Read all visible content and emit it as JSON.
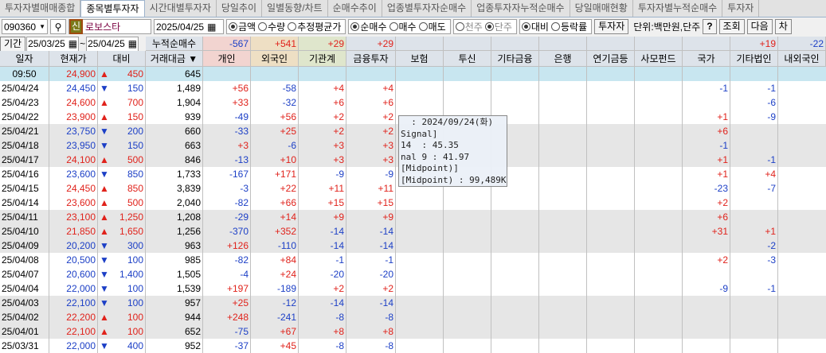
{
  "tabs": [
    "투자자별매매종합",
    "종목별투자자",
    "시간대별투자자",
    "당일추이",
    "일별동향/차트",
    "순매수추이",
    "업종별투자자순매수",
    "업종투자자누적순매수",
    "당일매매현황",
    "투자자별누적순매수",
    "투자자"
  ],
  "active_tab": 1,
  "toolbar": {
    "code": "090360",
    "new_badge": "신",
    "name": "로보스타",
    "date": "2025/04/25",
    "radios1": [
      {
        "label": "금액",
        "on": true
      },
      {
        "label": "수량",
        "on": false
      },
      {
        "label": "추정평균가",
        "on": false
      }
    ],
    "radios2": [
      {
        "label": "순매수",
        "on": true
      },
      {
        "label": "매수",
        "on": false
      },
      {
        "label": "매도",
        "on": false
      }
    ],
    "radios3": [
      {
        "label": "천주",
        "on": false
      },
      {
        "label": "단주",
        "on": true
      }
    ],
    "radios4": [
      {
        "label": "대비",
        "on": true
      },
      {
        "label": "등락률",
        "on": false
      }
    ],
    "investor_btn": "투자자",
    "unit": "단위:백만원,단주",
    "help": "?",
    "query": "조회",
    "next": "다음",
    "chart": "차"
  },
  "period": {
    "label": "기간",
    "from": "25/03/25",
    "to": "25/04/25",
    "cum_label": "누적순매수",
    "cum": [
      "-567",
      "+541",
      "+29",
      "+29",
      "",
      "",
      "",
      "",
      "",
      "",
      "",
      "+19",
      "-22"
    ]
  },
  "columns": [
    "일자",
    "현재가",
    "대비",
    "거래대금",
    "개인",
    "외국인",
    "기관계",
    "금융투자",
    "보험",
    "투신",
    "기타금융",
    "은행",
    "연기금등",
    "사모펀드",
    "국가",
    "기타법인",
    "내외국인"
  ],
  "rows": [
    [
      "09:50",
      "24,900",
      "up",
      "450",
      "645",
      "",
      "",
      "",
      "",
      "",
      "",
      "",
      "",
      "",
      "",
      "",
      ""
    ],
    [
      "25/04/24",
      "24,450",
      "dn",
      "150",
      "1,489",
      "+56",
      "-58",
      "+4",
      "+4",
      "",
      "",
      "",
      "",
      "",
      "",
      "-1",
      "-1"
    ],
    [
      "25/04/23",
      "24,600",
      "up",
      "700",
      "1,904",
      "+33",
      "-32",
      "+6",
      "+6",
      "",
      "",
      "",
      "",
      "",
      "",
      "",
      "-6"
    ],
    [
      "25/04/22",
      "23,900",
      "up",
      "150",
      "939",
      "-49",
      "+56",
      "+2",
      "+2",
      "",
      "",
      "",
      "",
      "",
      "",
      "+1",
      "-9"
    ],
    [
      "25/04/21",
      "23,750",
      "dn",
      "200",
      "660",
      "-33",
      "+25",
      "+2",
      "+2",
      "",
      "",
      "",
      "",
      "",
      "",
      "+6",
      ""
    ],
    [
      "25/04/18",
      "23,950",
      "dn",
      "150",
      "663",
      "+3",
      "-6",
      "+3",
      "+3",
      "",
      "",
      "",
      "",
      "",
      "",
      "-1",
      ""
    ],
    [
      "25/04/17",
      "24,100",
      "up",
      "500",
      "846",
      "-13",
      "+10",
      "+3",
      "+3",
      "",
      "",
      "",
      "",
      "",
      "",
      "+1",
      "-1"
    ],
    [
      "25/04/16",
      "23,600",
      "dn",
      "850",
      "1,733",
      "-167",
      "+171",
      "-9",
      "-9",
      "",
      "",
      "",
      "",
      "",
      "",
      "+1",
      "+4"
    ],
    [
      "25/04/15",
      "24,450",
      "up",
      "850",
      "3,839",
      "-3",
      "+22",
      "+11",
      "+11",
      "",
      "",
      "",
      "",
      "",
      "",
      "-23",
      "-7"
    ],
    [
      "25/04/14",
      "23,600",
      "up",
      "500",
      "2,040",
      "-82",
      "+66",
      "+15",
      "+15",
      "",
      "",
      "",
      "",
      "",
      "",
      "+2",
      ""
    ],
    [
      "25/04/11",
      "23,100",
      "up",
      "1,250",
      "1,208",
      "-29",
      "+14",
      "+9",
      "+9",
      "",
      "",
      "",
      "",
      "",
      "",
      "+6",
      ""
    ],
    [
      "25/04/10",
      "21,850",
      "up",
      "1,650",
      "1,256",
      "-370",
      "+352",
      "-14",
      "-14",
      "",
      "",
      "",
      "",
      "",
      "",
      "+31",
      "+1"
    ],
    [
      "25/04/09",
      "20,200",
      "dn",
      "300",
      "963",
      "+126",
      "-110",
      "-14",
      "-14",
      "",
      "",
      "",
      "",
      "",
      "",
      "",
      "-2"
    ],
    [
      "25/04/08",
      "20,500",
      "dn",
      "100",
      "985",
      "-82",
      "+84",
      "-1",
      "-1",
      "",
      "",
      "",
      "",
      "",
      "",
      "+2",
      "-3"
    ],
    [
      "25/04/07",
      "20,600",
      "dn",
      "1,400",
      "1,505",
      "-4",
      "+24",
      "-20",
      "-20",
      "",
      "",
      "",
      "",
      "",
      "",
      "",
      ""
    ],
    [
      "25/04/04",
      "22,000",
      "dn",
      "100",
      "1,539",
      "+197",
      "-189",
      "+2",
      "+2",
      "",
      "",
      "",
      "",
      "",
      "",
      "-9",
      "-1"
    ],
    [
      "25/04/03",
      "22,100",
      "dn",
      "100",
      "957",
      "+25",
      "-12",
      "-14",
      "-14",
      "",
      "",
      "",
      "",
      "",
      "",
      "",
      ""
    ],
    [
      "25/04/02",
      "22,200",
      "up",
      "100",
      "944",
      "+248",
      "-241",
      "-8",
      "-8",
      "",
      "",
      "",
      "",
      "",
      "",
      "",
      ""
    ],
    [
      "25/04/01",
      "22,100",
      "up",
      "100",
      "652",
      "-75",
      "+67",
      "+8",
      "+8",
      "",
      "",
      "",
      "",
      "",
      "",
      "",
      ""
    ],
    [
      "25/03/31",
      "22,000",
      "dn",
      "400",
      "952",
      "-37",
      "+45",
      "-8",
      "-8",
      "",
      "",
      "",
      "",
      "",
      "",
      "",
      ""
    ]
  ],
  "tooltip": [
    "  : 2024/09/24(화)",
    "Signal]",
    "14  : 45.35",
    "nal 9 : 41.97",
    "[Midpoint)]",
    "[Midpoint) : 99,489K"
  ],
  "colors": {
    "up": "#e0221b",
    "down": "#1c3fc6",
    "live_row": "#c8e6f0",
    "band": "#e6e6e6"
  }
}
